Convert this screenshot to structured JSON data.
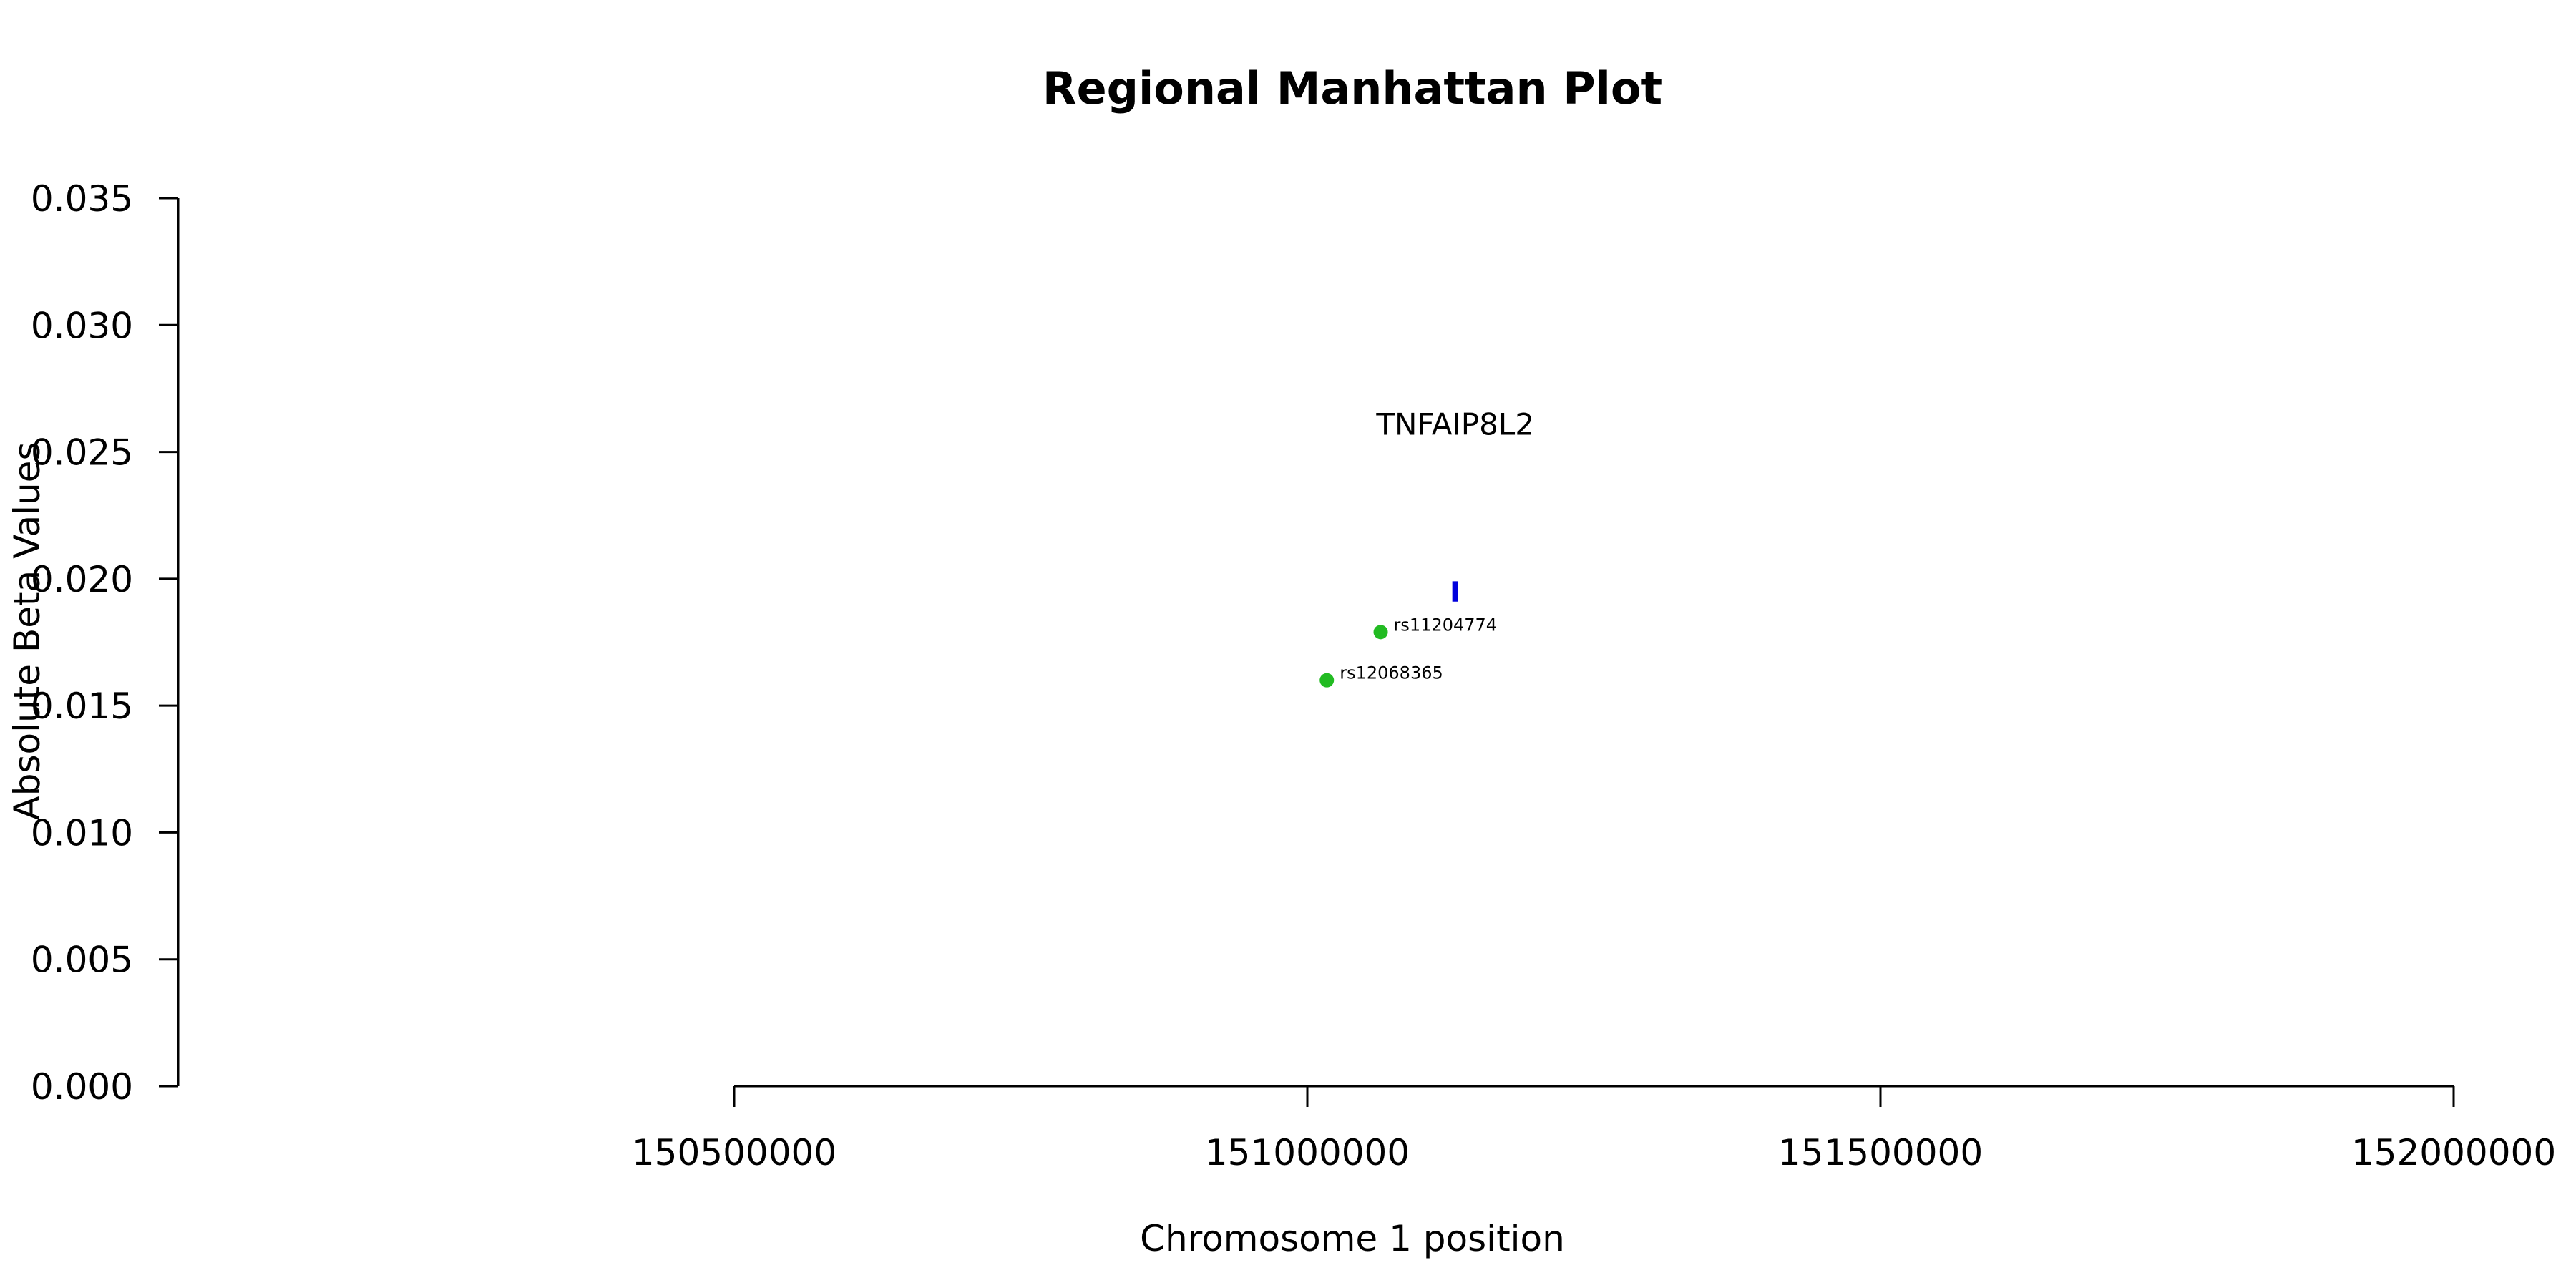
{
  "chart_data": {
    "type": "scatter",
    "title": "Regional Manhattan Plot",
    "xlabel": "Chromosome 1 position",
    "ylabel": "Absolute Beta Values",
    "xlim": [
      150500000,
      152000000
    ],
    "ylim": [
      0,
      0.035
    ],
    "x_ticks": [
      150500000,
      151000000,
      151500000,
      152000000
    ],
    "y_ticks": [
      "0.000",
      "0.005",
      "0.010",
      "0.015",
      "0.020",
      "0.025",
      "0.030",
      "0.035"
    ],
    "grid": false,
    "points": [
      {
        "label": "rs11204774",
        "x": 151064000,
        "y": 0.0179,
        "color": "#22bb22"
      },
      {
        "label": "rs12068365",
        "x": 151017000,
        "y": 0.016,
        "color": "#22bb22"
      }
    ],
    "genes": [
      {
        "label": "TNFAIP8L2",
        "x": 151129000,
        "y_low": 0.0191,
        "y_high": 0.0199,
        "label_y": 0.0261,
        "color": "#0000dd"
      }
    ]
  }
}
